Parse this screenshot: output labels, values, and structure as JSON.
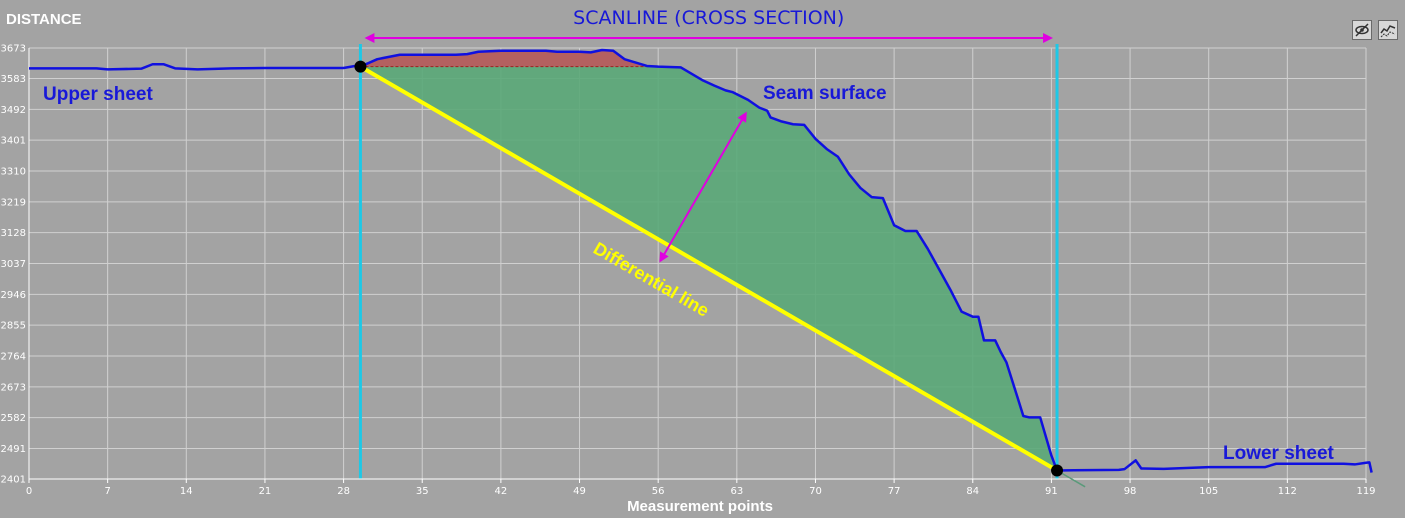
{
  "chart_data": {
    "type": "line",
    "title": "DISTANCE",
    "xlabel": "Measurement points",
    "ylabel": "",
    "xlim": [
      0,
      119
    ],
    "ylim": [
      2401,
      3673
    ],
    "x_ticks": [
      0,
      7,
      14,
      21,
      28,
      35,
      42,
      49,
      56,
      63,
      70,
      77,
      84,
      91,
      98,
      105,
      112,
      119
    ],
    "y_ticks": [
      2401,
      2491,
      2582,
      2673,
      2764,
      2855,
      2946,
      3037,
      3128,
      3219,
      3310,
      3401,
      3492,
      3583,
      3673
    ],
    "grid": true,
    "series": [
      {
        "color": "#1010e0",
        "points": [
          [
            0,
            3613
          ],
          [
            6,
            3613
          ],
          [
            7,
            3610
          ],
          [
            10,
            3612
          ],
          [
            11,
            3625
          ],
          [
            12,
            3625
          ],
          [
            13,
            3613
          ],
          [
            15,
            3610
          ],
          [
            18,
            3613
          ],
          [
            21,
            3614
          ],
          [
            28,
            3614
          ],
          [
            29,
            3620
          ],
          [
            29.5,
            3618
          ],
          [
            31,
            3640
          ],
          [
            33,
            3653
          ],
          [
            35,
            3653
          ],
          [
            38,
            3653
          ],
          [
            39,
            3655
          ],
          [
            40,
            3662
          ],
          [
            42,
            3665
          ],
          [
            46,
            3665
          ],
          [
            47,
            3662
          ],
          [
            49,
            3662
          ],
          [
            50,
            3660
          ],
          [
            51,
            3667
          ],
          [
            52,
            3665
          ],
          [
            53,
            3640
          ],
          [
            54,
            3630
          ],
          [
            55,
            3620
          ],
          [
            56,
            3618
          ],
          [
            58,
            3616
          ],
          [
            60,
            3577
          ],
          [
            61,
            3562
          ],
          [
            62,
            3548
          ],
          [
            62.6,
            3543
          ],
          [
            64,
            3520
          ],
          [
            65,
            3497
          ],
          [
            65.7,
            3488
          ],
          [
            66,
            3468
          ],
          [
            67,
            3456
          ],
          [
            68,
            3448
          ],
          [
            69,
            3446
          ],
          [
            70,
            3405
          ],
          [
            71,
            3375
          ],
          [
            72,
            3352
          ],
          [
            73,
            3300
          ],
          [
            74,
            3260
          ],
          [
            75,
            3233
          ],
          [
            76,
            3230
          ],
          [
            77,
            3150
          ],
          [
            78,
            3133
          ],
          [
            79,
            3133
          ],
          [
            80,
            3080
          ],
          [
            81,
            3020
          ],
          [
            82,
            2960
          ],
          [
            83,
            2895
          ],
          [
            84,
            2880
          ],
          [
            84.5,
            2880
          ],
          [
            85,
            2810
          ],
          [
            86,
            2810
          ],
          [
            86.5,
            2775
          ],
          [
            87,
            2745
          ],
          [
            88,
            2640
          ],
          [
            88.5,
            2587
          ],
          [
            89,
            2583
          ],
          [
            90,
            2583
          ],
          [
            91,
            2470
          ],
          [
            91.5,
            2426
          ],
          [
            93,
            2427
          ],
          [
            97,
            2428
          ],
          [
            97.5,
            2430
          ],
          [
            98.5,
            2456
          ],
          [
            99,
            2432
          ],
          [
            101,
            2431
          ],
          [
            105,
            2436
          ],
          [
            110,
            2436
          ],
          [
            111,
            2446
          ],
          [
            117,
            2446
          ],
          [
            118,
            2444
          ],
          [
            119,
            2449
          ],
          [
            119.3,
            2450
          ],
          [
            119.5,
            2420
          ]
        ]
      }
    ],
    "differential_line": {
      "color": "#ffff00",
      "from": [
        29.5,
        3618
      ],
      "to": [
        91.5,
        2426
      ]
    },
    "scanline_bounds": {
      "color": "#1ec8e6",
      "x": [
        29.5,
        91.5
      ]
    },
    "filled_regions": [
      {
        "name": "above-reference",
        "color": "#b46060"
      },
      {
        "name": "seam-area",
        "color": "#5aa878"
      }
    ],
    "annotations": {
      "scanline_label": "SCANLINE  (CROSS SECTION)",
      "upper_sheet": "Upper sheet",
      "seam_surface": "Seam surface",
      "differential_line": "Differential line",
      "lower_sheet": "Lower sheet"
    },
    "colors": {
      "background": "#a3a3a3",
      "grid": "#d0d0d0",
      "label": "#1818d8",
      "arrow": "#e000e0",
      "marker": "#000000"
    }
  },
  "toolbar": {
    "icons": [
      "visibility-off-icon",
      "chart-style-icon"
    ]
  }
}
